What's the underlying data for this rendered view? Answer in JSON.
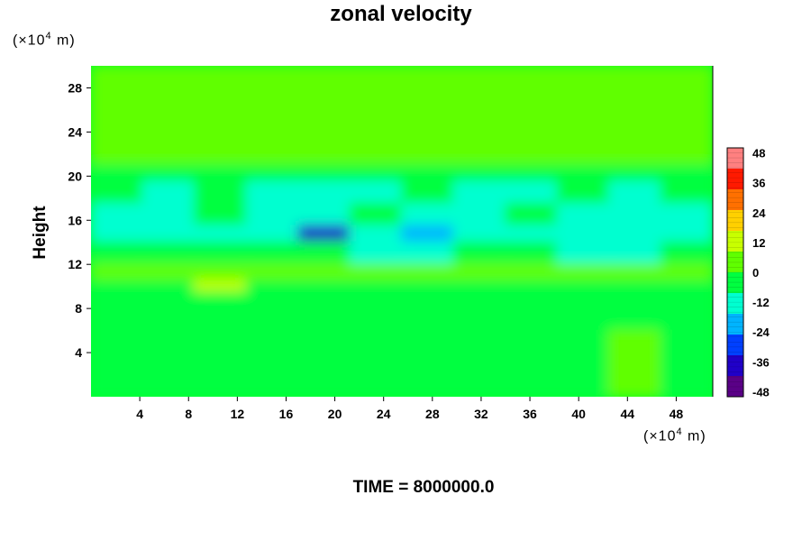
{
  "title": "zonal velocity",
  "y_unit": {
    "prefix": "(×10",
    "exp": "4",
    "suffix": " m)"
  },
  "x_unit": {
    "prefix": "(×10",
    "exp": "4",
    "suffix": " m)"
  },
  "footer": "TIME = 8000000.0",
  "chart_data": {
    "type": "heatmap",
    "title": "zonal velocity",
    "ylabel": "Height",
    "xlabel": "",
    "x_unit": "(×10^4 m)",
    "y_unit": "(×10^4 m)",
    "xlim": [
      0,
      51
    ],
    "ylim": [
      0,
      30
    ],
    "xticks": [
      4,
      8,
      12,
      16,
      20,
      24,
      28,
      32,
      36,
      40,
      44,
      48
    ],
    "yticks": [
      4,
      8,
      12,
      16,
      20,
      24,
      28
    ],
    "colorbar": {
      "levels": [
        -48,
        -36,
        -24,
        -12,
        0,
        12,
        24,
        36,
        48
      ],
      "range": [
        -50,
        50
      ],
      "colors": [
        "#5a0087",
        "#2000c8",
        "#0040ff",
        "#00b4ff",
        "#00ffd0",
        "#00ff40",
        "#60ff00",
        "#c8ff00",
        "#ffd000",
        "#ff7000",
        "#ff1a00",
        "#ff8080"
      ]
    },
    "value_grid_note": "coarse approximate field, rows = height bands (top to bottom), columns = 12 x-bins",
    "grid_x": [
      0,
      4.25,
      8.5,
      12.75,
      17,
      21.25,
      25.5,
      29.75,
      34,
      38.25,
      42.5,
      46.75,
      51
    ],
    "grid_y": [
      30,
      21,
      19.5,
      17.5,
      15.5,
      14,
      12,
      10.5,
      9.5,
      6,
      2,
      0
    ],
    "values": [
      [
        0,
        0,
        0,
        0,
        0,
        0,
        0,
        0,
        0,
        0,
        0,
        0
      ],
      [
        -4,
        -4,
        -3,
        -4,
        -5,
        -4,
        -4,
        -3,
        -4,
        -4,
        -3,
        -3
      ],
      [
        -8,
        -10,
        -8,
        -9,
        -12,
        -10,
        -8,
        -9,
        -10,
        -8,
        -9,
        -8
      ],
      [
        -12,
        -10,
        -8,
        -14,
        -12,
        -8,
        -10,
        -12,
        -8,
        -10,
        -12,
        -10
      ],
      [
        -16,
        -12,
        -10,
        -12,
        -34,
        -14,
        -18,
        -12,
        -14,
        -16,
        -12,
        -16
      ],
      [
        -8,
        -6,
        -4,
        -6,
        -8,
        -10,
        -12,
        -8,
        -6,
        -10,
        -14,
        -8
      ],
      [
        6,
        4,
        2,
        4,
        3,
        2,
        3,
        4,
        2,
        3,
        2,
        4
      ],
      [
        -6,
        -8,
        10,
        -4,
        -6,
        -4,
        -6,
        -8,
        -4,
        -6,
        -5,
        -6
      ],
      [
        -4,
        -6,
        -8,
        -4,
        -6,
        -8,
        -6,
        -4,
        -6,
        -8,
        -4,
        -6
      ],
      [
        -4,
        -6,
        -2,
        -4,
        -6,
        -3,
        -5,
        -6,
        -4,
        -2,
        2,
        -2
      ],
      [
        -2,
        -4,
        -1,
        -2,
        -4,
        -2,
        -3,
        -4,
        -1,
        -2,
        0,
        -2
      ]
    ]
  }
}
